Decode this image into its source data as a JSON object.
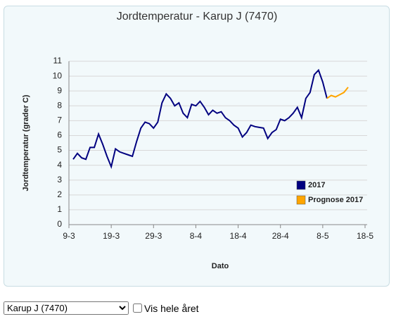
{
  "chart_data": {
    "type": "line",
    "title": "Jordtemperatur - Karup J (7470)",
    "xlabel": "Dato",
    "ylabel": "Jordtemperatur (grader C)",
    "x": [
      "10-3",
      "11-3",
      "12-3",
      "13-3",
      "14-3",
      "15-3",
      "16-3",
      "17-3",
      "18-3",
      "19-3",
      "20-3",
      "21-3",
      "22-3",
      "23-3",
      "24-3",
      "25-3",
      "26-3",
      "27-3",
      "28-3",
      "29-3",
      "30-3",
      "31-3",
      "1-4",
      "2-4",
      "3-4",
      "4-4",
      "5-4",
      "6-4",
      "7-4",
      "8-4",
      "9-4",
      "10-4",
      "11-4",
      "12-4",
      "13-4",
      "14-4",
      "15-4",
      "16-4",
      "17-4",
      "18-4",
      "19-4",
      "20-4",
      "21-4",
      "22-4",
      "23-4",
      "24-4",
      "25-4",
      "26-4",
      "27-4",
      "28-4",
      "29-4",
      "30-4",
      "1-5",
      "2-5",
      "3-5",
      "4-5",
      "5-5",
      "6-5",
      "7-5",
      "8-5",
      "9-5",
      "10-5",
      "11-5",
      "12-5",
      "13-5",
      "14-5"
    ],
    "series": [
      {
        "name": "2017",
        "color": "#000080",
        "values": [
          4.4,
          4.8,
          4.5,
          4.4,
          5.2,
          5.2,
          6.1,
          5.4,
          4.6,
          3.9,
          5.1,
          4.9,
          4.8,
          4.7,
          4.6,
          5.6,
          6.5,
          6.9,
          6.8,
          6.5,
          6.9,
          8.2,
          8.8,
          8.5,
          8.0,
          8.2,
          7.5,
          7.2,
          8.1,
          8.0,
          8.3,
          7.9,
          7.4,
          7.7,
          7.5,
          7.6,
          7.2,
          7.0,
          6.7,
          6.5,
          5.9,
          6.2,
          6.7,
          6.6,
          6.55,
          6.5,
          5.8,
          6.2,
          6.4,
          7.1,
          7.0,
          7.2,
          7.5,
          7.9,
          7.2,
          8.5,
          8.9,
          10.1,
          10.4,
          9.6,
          8.5,
          null,
          null,
          null,
          null,
          null
        ]
      },
      {
        "name": "Prognose 2017",
        "color": "#ffa500",
        "values": [
          null,
          null,
          null,
          null,
          null,
          null,
          null,
          null,
          null,
          null,
          null,
          null,
          null,
          null,
          null,
          null,
          null,
          null,
          null,
          null,
          null,
          null,
          null,
          null,
          null,
          null,
          null,
          null,
          null,
          null,
          null,
          null,
          null,
          null,
          null,
          null,
          null,
          null,
          null,
          null,
          null,
          null,
          null,
          null,
          null,
          null,
          null,
          null,
          null,
          null,
          null,
          null,
          null,
          null,
          null,
          null,
          null,
          null,
          null,
          null,
          8.5,
          8.7,
          8.6,
          8.75,
          8.9,
          9.25
        ]
      }
    ],
    "xlim": [
      "9-3",
      "18-5"
    ],
    "xticks": [
      "9-3",
      "19-3",
      "29-3",
      "8-4",
      "18-4",
      "28-4",
      "8-5",
      "18-5"
    ],
    "ylim": [
      0,
      11
    ],
    "yticks": [
      0,
      1,
      2,
      3,
      4,
      5,
      6,
      7,
      8,
      9,
      10,
      11
    ],
    "grid": true,
    "legend": "lower right"
  },
  "controls": {
    "station": "Karup J (7470)",
    "show_year": "Vis hele året"
  }
}
